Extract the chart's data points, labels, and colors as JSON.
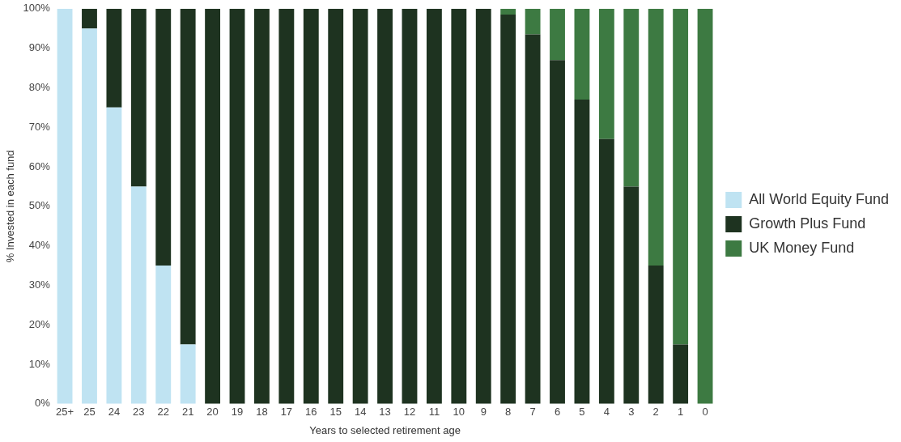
{
  "chart_data": {
    "type": "bar",
    "stacked": true,
    "xlabel": "Years to selected retirement age",
    "ylabel": "% Invested in each fund",
    "categories": [
      "25+",
      "25",
      "24",
      "23",
      "22",
      "21",
      "20",
      "19",
      "18",
      "17",
      "16",
      "15",
      "14",
      "13",
      "12",
      "11",
      "10",
      "9",
      "8",
      "7",
      "6",
      "5",
      "4",
      "3",
      "2",
      "1",
      "0"
    ],
    "series": [
      {
        "name": "All World Equity Fund",
        "color": "#bfe3f2",
        "values": [
          100,
          95,
          75,
          55,
          35,
          15,
          0,
          0,
          0,
          0,
          0,
          0,
          0,
          0,
          0,
          0,
          0,
          0,
          0,
          0,
          0,
          0,
          0,
          0,
          0,
          0,
          0
        ]
      },
      {
        "name": "Growth Plus Fund",
        "color": "#1e3320",
        "values": [
          0,
          5,
          25,
          45,
          65,
          85,
          100,
          100,
          100,
          100,
          100,
          100,
          100,
          100,
          100,
          100,
          100,
          100,
          98.5,
          93.5,
          87,
          77,
          67,
          55,
          35,
          15,
          0
        ]
      },
      {
        "name": "UK Money Fund",
        "color": "#3d7a42",
        "values": [
          0,
          0,
          0,
          0,
          0,
          0,
          0,
          0,
          0,
          0,
          0,
          0,
          0,
          0,
          0,
          0,
          0,
          0,
          1.5,
          6.5,
          13,
          23,
          33,
          45,
          65,
          85,
          100
        ]
      }
    ],
    "ylim": [
      0,
      100
    ],
    "yticks": [
      {
        "value": 0,
        "label": "0%"
      },
      {
        "value": 10,
        "label": "10%"
      },
      {
        "value": 20,
        "label": "20%"
      },
      {
        "value": 30,
        "label": "30%"
      },
      {
        "value": 40,
        "label": "40%"
      },
      {
        "value": 50,
        "label": "50%"
      },
      {
        "value": 60,
        "label": "60%"
      },
      {
        "value": 70,
        "label": "70%"
      },
      {
        "value": 80,
        "label": "80%"
      },
      {
        "value": 90,
        "label": "90%"
      },
      {
        "value": 100,
        "label": "100%"
      }
    ],
    "grid": false,
    "legend": "right"
  }
}
